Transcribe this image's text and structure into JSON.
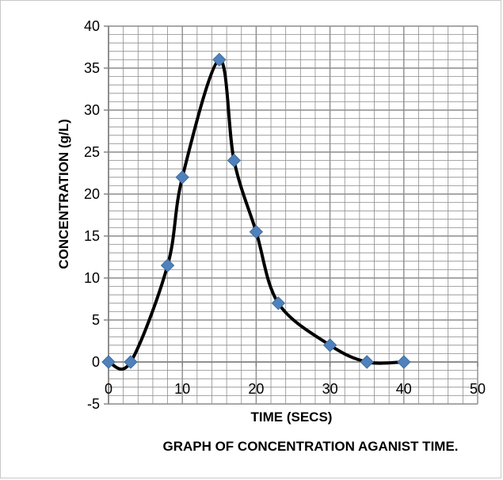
{
  "chart_data": {
    "type": "scatter",
    "title": "GRAPH OF CONCENTRATION AGANIST TIME.",
    "xlabel": "TIME (SECS)",
    "ylabel": "CONCENTRATION (g/L)",
    "xlim": [
      0,
      50
    ],
    "ylim": [
      -5,
      40
    ],
    "x_ticks": [
      0,
      10,
      20,
      30,
      40,
      50
    ],
    "y_ticks": [
      -5,
      0,
      5,
      10,
      15,
      20,
      25,
      30,
      35,
      40
    ],
    "grid": true,
    "smoothed_line": true,
    "series": [
      {
        "x": [
          0,
          3,
          8,
          10,
          15,
          17,
          20,
          23,
          30,
          35,
          40
        ],
        "values": [
          0,
          0,
          11.5,
          22,
          36,
          24,
          15.5,
          7,
          2,
          0,
          0
        ]
      }
    ],
    "colors": {
      "line": "#000000",
      "marker": "#4f81bd",
      "grid": "#8c8c8c",
      "axis": "#7f7f7f"
    }
  }
}
